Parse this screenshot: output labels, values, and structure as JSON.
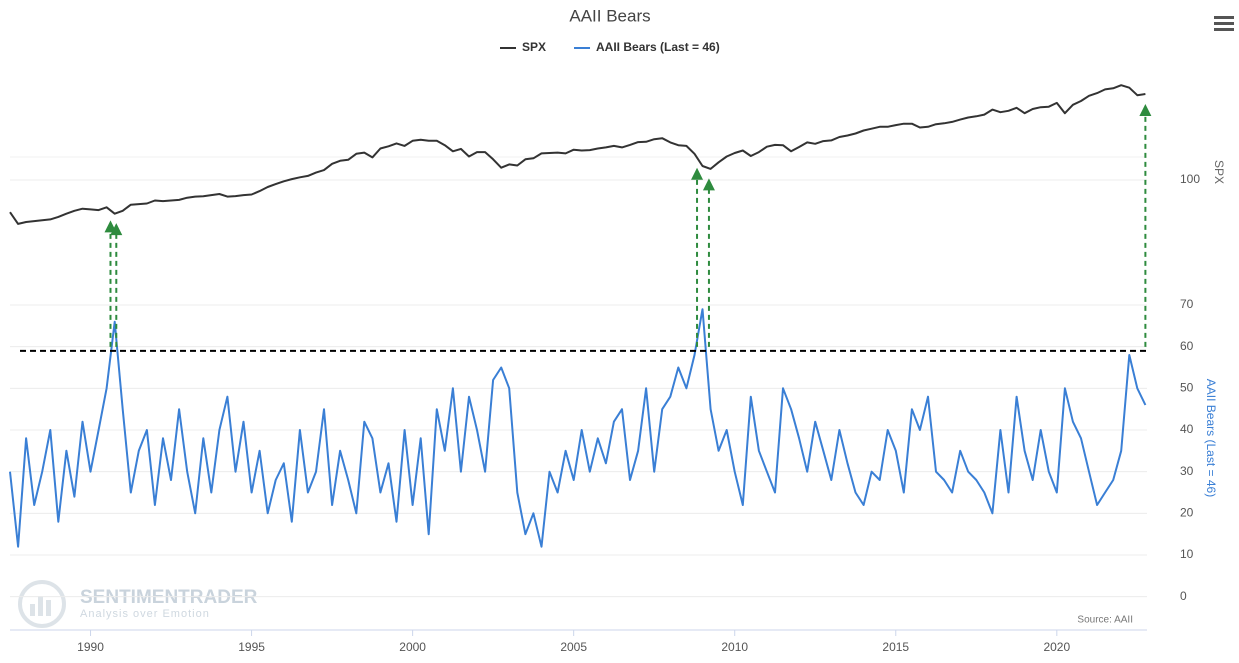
{
  "chart_data": {
    "type": "line",
    "title": "AAII Bears",
    "y_title": "SPX",
    "y2_title": "AAII Bears (Last = 46)",
    "source": "Source: AAII",
    "watermark": {
      "brand": "SENTIMENTRADER",
      "tagline": "Analysis over Emotion"
    },
    "x": [
      1987.5,
      1987.75,
      1988,
      1988.25,
      1988.5,
      1988.75,
      1989,
      1989.25,
      1989.5,
      1989.75,
      1990,
      1990.25,
      1990.5,
      1990.75,
      1991,
      1991.25,
      1991.5,
      1991.75,
      1992,
      1992.25,
      1992.5,
      1992.75,
      1993,
      1993.25,
      1993.5,
      1993.75,
      1994,
      1994.25,
      1994.5,
      1994.75,
      1995,
      1995.25,
      1995.5,
      1995.75,
      1996,
      1996.25,
      1996.5,
      1996.75,
      1997,
      1997.25,
      1997.5,
      1997.75,
      1998,
      1998.25,
      1998.5,
      1998.75,
      1999,
      1999.25,
      1999.5,
      1999.75,
      2000,
      2000.25,
      2000.5,
      2000.75,
      2001,
      2001.25,
      2001.5,
      2001.75,
      2002,
      2002.25,
      2002.5,
      2002.75,
      2003,
      2003.25,
      2003.5,
      2003.75,
      2004,
      2004.25,
      2004.5,
      2004.75,
      2005,
      2005.25,
      2005.5,
      2005.75,
      2006,
      2006.25,
      2006.5,
      2006.75,
      2007,
      2007.25,
      2007.5,
      2007.75,
      2008,
      2008.25,
      2008.5,
      2008.75,
      2009,
      2009.25,
      2009.5,
      2009.75,
      2010,
      2010.25,
      2010.5,
      2010.75,
      2011,
      2011.25,
      2011.5,
      2011.75,
      2012,
      2012.25,
      2012.5,
      2012.75,
      2013,
      2013.25,
      2013.5,
      2013.75,
      2014,
      2014.25,
      2014.5,
      2014.75,
      2015,
      2015.25,
      2015.5,
      2015.75,
      2016,
      2016.25,
      2016.5,
      2016.75,
      2017,
      2017.25,
      2017.5,
      2017.75,
      2018,
      2018.25,
      2018.5,
      2018.75,
      2019,
      2019.25,
      2019.5,
      2019.75,
      2020,
      2020.25,
      2020.5,
      2020.75,
      2021,
      2021.25,
      2021.5,
      2021.75,
      2022,
      2022.25,
      2022.5,
      2022.75
    ],
    "series": [
      {
        "name": "SPX",
        "color": "#333333",
        "axis": "y",
        "values": [
          320,
          250,
          260,
          265,
          270,
          275,
          290,
          310,
          330,
          345,
          340,
          335,
          355,
          310,
          330,
          375,
          380,
          385,
          410,
          405,
          410,
          415,
          435,
          445,
          448,
          460,
          470,
          445,
          450,
          460,
          465,
          500,
          545,
          580,
          615,
          645,
          670,
          690,
          740,
          780,
          890,
          950,
          970,
          1100,
          1130,
          1020,
          1230,
          1290,
          1370,
          1300,
          1450,
          1480,
          1450,
          1450,
          1320,
          1160,
          1220,
          1040,
          1140,
          1140,
          980,
          820,
          880,
          860,
          980,
          1000,
          1110,
          1120,
          1130,
          1110,
          1200,
          1180,
          1190,
          1230,
          1260,
          1300,
          1260,
          1330,
          1410,
          1420,
          1500,
          1530,
          1400,
          1320,
          1300,
          1100,
          850,
          800,
          920,
          1040,
          1120,
          1180,
          1050,
          1140,
          1280,
          1330,
          1320,
          1160,
          1270,
          1400,
          1360,
          1440,
          1460,
          1570,
          1620,
          1690,
          1800,
          1870,
          1950,
          1950,
          2020,
          2080,
          2080,
          1920,
          1950,
          2060,
          2100,
          2160,
          2270,
          2370,
          2430,
          2520,
          2800,
          2650,
          2730,
          2910,
          2600,
          2840,
          2950,
          2980,
          3230,
          2600,
          3100,
          3360,
          3750,
          3970,
          4300,
          4400,
          4700,
          4450,
          3800,
          3900
        ]
      },
      {
        "name": "AAII Bears (Last = 46)",
        "color": "#3a7fd5",
        "axis": "y2",
        "values": [
          30,
          12,
          38,
          22,
          30,
          40,
          18,
          35,
          24,
          42,
          30,
          40,
          50,
          66,
          45,
          25,
          35,
          40,
          22,
          38,
          28,
          45,
          30,
          20,
          38,
          25,
          40,
          48,
          30,
          42,
          25,
          35,
          20,
          28,
          32,
          18,
          40,
          25,
          30,
          45,
          22,
          35,
          28,
          20,
          42,
          38,
          25,
          32,
          18,
          40,
          22,
          38,
          15,
          45,
          35,
          50,
          30,
          48,
          40,
          30,
          52,
          55,
          50,
          25,
          15,
          20,
          12,
          30,
          25,
          35,
          28,
          40,
          30,
          38,
          32,
          42,
          45,
          28,
          35,
          50,
          30,
          45,
          48,
          55,
          50,
          58,
          69,
          45,
          35,
          40,
          30,
          22,
          48,
          35,
          30,
          25,
          50,
          45,
          38,
          30,
          42,
          35,
          28,
          40,
          32,
          25,
          22,
          30,
          28,
          40,
          35,
          25,
          45,
          40,
          48,
          30,
          28,
          25,
          35,
          30,
          28,
          25,
          20,
          40,
          25,
          48,
          35,
          28,
          40,
          30,
          25,
          50,
          42,
          38,
          30,
          22,
          25,
          28,
          35,
          58,
          50,
          46
        ]
      }
    ],
    "xlim": [
      1987.5,
      2022.8
    ],
    "xticks": [
      1990,
      1995,
      2000,
      2005,
      2010,
      2015,
      2020
    ],
    "ylim": [
      160,
      8000
    ],
    "ylog": true,
    "y2lim": [
      -8,
      100
    ],
    "y2ticks": [
      0,
      10,
      20,
      30,
      40,
      50,
      60,
      70,
      100
    ],
    "grid": true,
    "threshold": 59,
    "signals": [
      1990.62,
      1990.8,
      2008.83,
      2009.2,
      2022.75
    ],
    "signal_color": "#2e8b3e",
    "legend": "top"
  }
}
